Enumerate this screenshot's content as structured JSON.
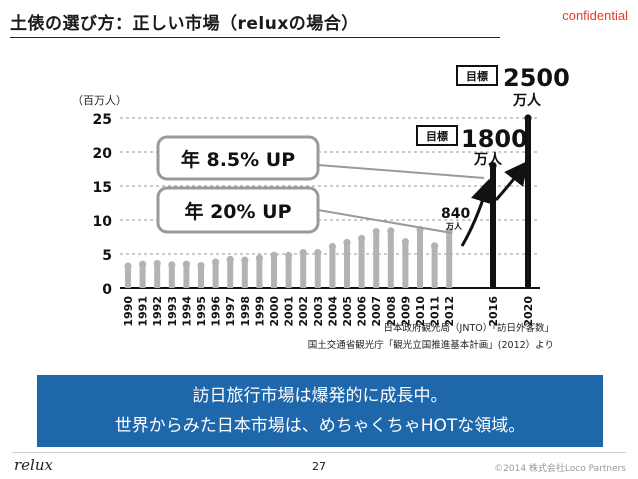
{
  "header": {
    "title": "土俵の選び方：正しい市場（reluxの場合）",
    "confidential": "confidential"
  },
  "chart_data": {
    "type": "bar",
    "unit_label": "（百万人）",
    "ylim": [
      0,
      25
    ],
    "yticks": [
      0,
      5,
      10,
      15,
      20,
      25
    ],
    "categories": [
      "1990",
      "1991",
      "1992",
      "1993",
      "1994",
      "1995",
      "1996",
      "1997",
      "1998",
      "1999",
      "2000",
      "2001",
      "2002",
      "2003",
      "2004",
      "2005",
      "2006",
      "2007",
      "2008",
      "2009",
      "2010",
      "2011",
      "2012",
      "2016",
      "2020"
    ],
    "values": [
      3.2,
      3.5,
      3.6,
      3.4,
      3.5,
      3.3,
      3.8,
      4.2,
      4.1,
      4.4,
      4.8,
      4.8,
      5.2,
      5.2,
      6.1,
      6.7,
      7.3,
      8.3,
      8.4,
      6.8,
      8.6,
      6.2,
      8.4,
      18,
      25
    ],
    "series_colors": {
      "actual": "#b3b3b3",
      "target": "#111111"
    },
    "annotations": {
      "target_2020_box": "目標",
      "target_2020_value": "2500",
      "target_2020_unit": "万人",
      "target_2016_box": "目標",
      "target_2016_value": "1800",
      "target_2016_unit": "万人",
      "actual_2012_value": "840",
      "actual_2012_unit": "万人",
      "growth_2016": "年 8.5% UP",
      "growth_2012": "年 20%  UP"
    }
  },
  "source": {
    "line1": "日本政府観光局（JNTO）「訪日外客数」",
    "line2": "国土交通省観光庁「観光立国推進基本計画」(2012）より"
  },
  "banner": {
    "line1": "訪日旅行市場は爆発的に成長中。",
    "line2": "世界からみた日本市場は、めちゃくちゃHOTな領域。"
  },
  "footer": {
    "logo": "relux",
    "page_number": "27",
    "copyright": "©2014 株式会社Loco Partners"
  }
}
